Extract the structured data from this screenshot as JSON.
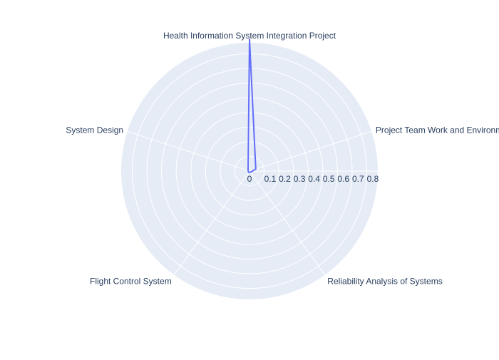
{
  "chart_data": {
    "type": "radar",
    "categories": [
      "Health Information System Integration Project",
      "Project Team Work and Environment",
      "Reliability Analysis of Systems",
      "Flight Control System",
      "System Design"
    ],
    "series": [
      {
        "values": [
          0.9,
          0.045,
          0.01,
          0.01,
          0.01
        ]
      }
    ],
    "radial_ticks": [
      "0",
      "0.1",
      "0.2",
      "0.3",
      "0.4",
      "0.5",
      "0.6",
      "0.7",
      "0.8"
    ],
    "radial_tick_values": [
      0,
      0.1,
      0.2,
      0.3,
      0.4,
      0.5,
      0.6,
      0.7,
      0.8
    ],
    "rlim": [
      0,
      0.875
    ],
    "grid": true,
    "colors": {
      "series_line": "#636efa",
      "polar_background": "#e5ecf6",
      "grid_line": "#ffffff",
      "text": "#2a3f5f"
    }
  }
}
